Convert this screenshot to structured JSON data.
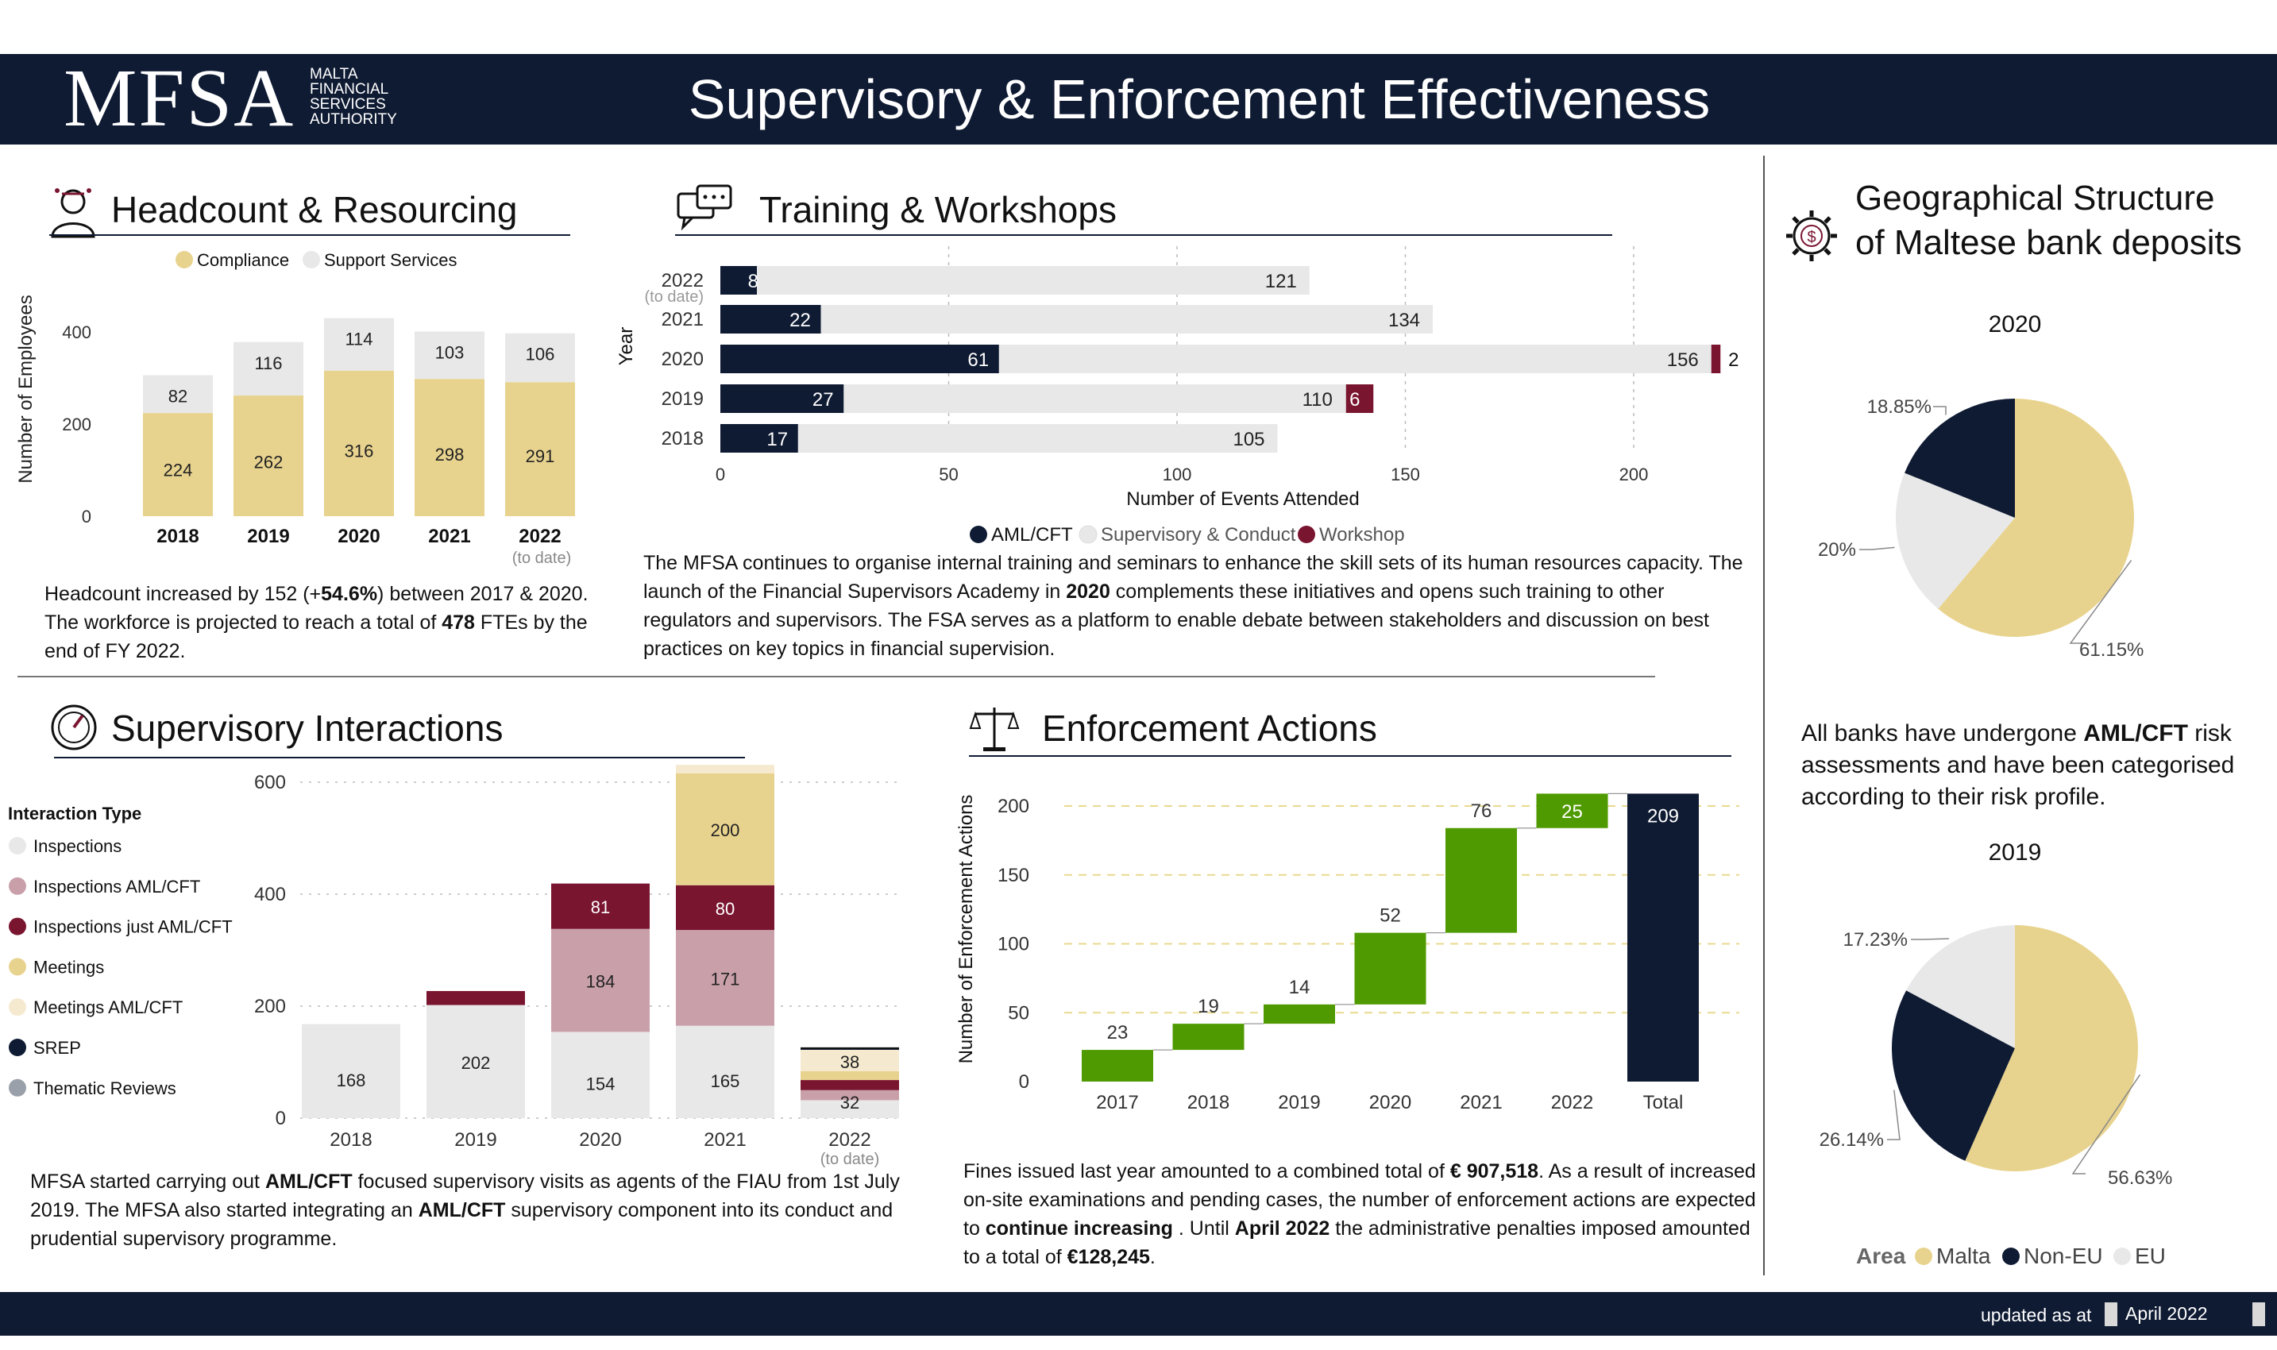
{
  "header": {
    "logo_main": "MFSA",
    "logo_sub": [
      "MALTA",
      "FINANCIAL",
      "SERVICES",
      "AUTHORITY"
    ],
    "title": "Supervisory & Enforcement Effectiveness"
  },
  "colors": {
    "navy": "#0f1b33",
    "gold": "#e8d38e",
    "light_gray": "#e8e8e8",
    "maroon": "#7a1530",
    "mauve": "#c9a0aa",
    "cream": "#f5ead0",
    "green": "#4f9a00",
    "gray": "#9aa0aa"
  },
  "headcount": {
    "title": "Headcount & Resourcing",
    "icon": "person-icon",
    "paragraph_html": "Headcount increased by 152 (+<b>54.6%</b>) between 2017 &amp; 2020. The workforce is projected to reach a total of <b>478</b> FTEs by the end of FY 2022."
  },
  "training": {
    "title": "Training & Workshops",
    "icon": "chat-bubbles-icon",
    "paragraph_html": "The MFSA continues to organise internal training and seminars to enhance the skill sets of its human resources capacity. The launch of the Financial Supervisors Academy in <b>2020</b> complements these initiatives and opens such training to other regulators and supervisors. The FSA serves as a platform to enable debate between stakeholders and discussion on best practices on key topics in financial supervision."
  },
  "supervisory": {
    "title": "Supervisory Interactions",
    "icon": "gauge-icon",
    "paragraph_html": "MFSA started carrying out <b>AML/CFT</b> focused supervisory visits as agents of the FIAU from 1st July 2019. The MFSA also started integrating an <b>AML/CFT</b> supervisory component into its conduct and prudential supervisory programme."
  },
  "enforcement": {
    "title": "Enforcement Actions",
    "icon": "scales-icon",
    "paragraph_html": "Fines issued last year amounted to a combined total of <b>€ 907,518</b>. As a result of increased on-site examinations and pending cases, the number of enforcement actions are expected to <b>continue increasing</b> . Until <b>April 2022</b> the administrative penalties imposed amounted to a total of <b>€128,245</b>."
  },
  "geo": {
    "title_line1": "Geographical Structure",
    "title_line2": "of Maltese bank deposits",
    "icon": "dollar-gear-icon",
    "paragraph_html": "All banks have undergone <b>AML/CFT</b> risk assessments and have been categorised according to their risk profile."
  },
  "footer": {
    "updated_label": "updated as at",
    "date": "April 2022"
  },
  "chart_data": [
    {
      "id": "headcount",
      "type": "bar",
      "stacked": true,
      "categories": [
        "2018",
        "2019",
        "2020",
        "2021",
        "2022"
      ],
      "category_note": "(to date)",
      "series": [
        {
          "name": "Compliance",
          "values": [
            224,
            262,
            316,
            298,
            291
          ],
          "color": "#e8d38e"
        },
        {
          "name": "Support Services",
          "values": [
            82,
            116,
            114,
            103,
            106
          ],
          "color": "#e8e8e8"
        }
      ],
      "ylabel": "Number of Employees",
      "yticks": [
        0,
        200,
        400
      ],
      "ylim": [
        0,
        450
      ],
      "legend": "top"
    },
    {
      "id": "training",
      "type": "bar",
      "orientation": "horizontal",
      "categories": [
        "2022",
        "2021",
        "2020",
        "2019",
        "2018"
      ],
      "category_note": "(to date)",
      "series": [
        {
          "name": "AML/CFT",
          "values": [
            8,
            22,
            61,
            27,
            17
          ],
          "color": "#0f1b33"
        },
        {
          "name": "Supervisory & Conduct",
          "values": [
            121,
            134,
            156,
            110,
            105
          ],
          "color": "#e8e8e8"
        },
        {
          "name": "Workshop",
          "values": [
            null,
            null,
            2,
            6,
            null
          ],
          "color": "#7a1530"
        }
      ],
      "xlabel": "Number of Events Attended",
      "ylabel": "Year",
      "xticks": [
        0,
        50,
        100,
        150,
        200
      ],
      "xlim": [
        0,
        220
      ],
      "legend": "bottom"
    },
    {
      "id": "supervisory",
      "type": "bar",
      "stacked": true,
      "categories": [
        "2018",
        "2019",
        "2020",
        "2021",
        "2022"
      ],
      "category_note": "(to date)",
      "legend_title": "Interaction Type",
      "series": [
        {
          "name": "Inspections",
          "values": [
            168,
            202,
            154,
            165,
            32
          ],
          "color": "#e8e8e8"
        },
        {
          "name": "Inspections  AML/CFT",
          "values": [
            0,
            0,
            184,
            171,
            18
          ],
          "color": "#c9a0aa"
        },
        {
          "name": "Inspections just AML/CFT",
          "values": [
            0,
            25,
            81,
            80,
            18
          ],
          "color": "#7a1530"
        },
        {
          "name": "Meetings",
          "values": [
            0,
            0,
            0,
            200,
            16
          ],
          "color": "#e8d38e"
        },
        {
          "name": "Meetings  AML/CFT",
          "values": [
            0,
            0,
            0,
            15,
            38
          ],
          "color": "#f5ead0"
        },
        {
          "name": "SREP",
          "values": [
            0,
            0,
            0,
            0,
            3
          ],
          "color": "#0f1b33"
        },
        {
          "name": "Thematic Reviews",
          "values": [
            0,
            0,
            0,
            0,
            0
          ],
          "color": "#9aa0aa"
        }
      ],
      "labels": {
        "2018": [
          168
        ],
        "2019": [
          202
        ],
        "2020": [
          154,
          184,
          81
        ],
        "2021": [
          165,
          171,
          80,
          200
        ],
        "2022": [
          32,
          38
        ]
      },
      "yticks": [
        0,
        200,
        400,
        600
      ],
      "ylim": [
        0,
        640
      ],
      "legend": "left"
    },
    {
      "id": "enforcement",
      "type": "waterfall",
      "categories": [
        "2017",
        "2018",
        "2019",
        "2020",
        "2021",
        "2022",
        "Total"
      ],
      "values": [
        23,
        19,
        14,
        52,
        76,
        25,
        209
      ],
      "ylabel": "Number of Enforcement Actions",
      "yticks": [
        0,
        50,
        100,
        150,
        200
      ],
      "ylim": [
        0,
        215
      ],
      "colors": {
        "increase": "#4f9a00",
        "total": "#0f1b33"
      }
    },
    {
      "id": "deposits_2020",
      "type": "pie",
      "title": "2020",
      "slices": [
        {
          "label": "Malta",
          "value": 61.15,
          "display": "61.15%",
          "color": "#e8d38e"
        },
        {
          "label": "EU",
          "value": 20.0,
          "display": "20%",
          "color": "#e8e8e8"
        },
        {
          "label": "Non-EU",
          "value": 18.85,
          "display": "18.85%",
          "color": "#0f1b33"
        }
      ]
    },
    {
      "id": "deposits_2019",
      "type": "pie",
      "title": "2019",
      "slices": [
        {
          "label": "Malta",
          "value": 56.63,
          "display": "56.63%",
          "color": "#e8d38e"
        },
        {
          "label": "Non-EU",
          "value": 26.14,
          "display": "26.14%",
          "color": "#0f1b33"
        },
        {
          "label": "EU",
          "value": 17.23,
          "display": "17.23%",
          "color": "#e8e8e8"
        }
      ],
      "legend_title": "Area",
      "legend": [
        {
          "label": "Malta",
          "color": "#e8d38e"
        },
        {
          "label": "Non-EU",
          "color": "#0f1b33"
        },
        {
          "label": "EU",
          "color": "#e8e8e8"
        }
      ]
    }
  ]
}
